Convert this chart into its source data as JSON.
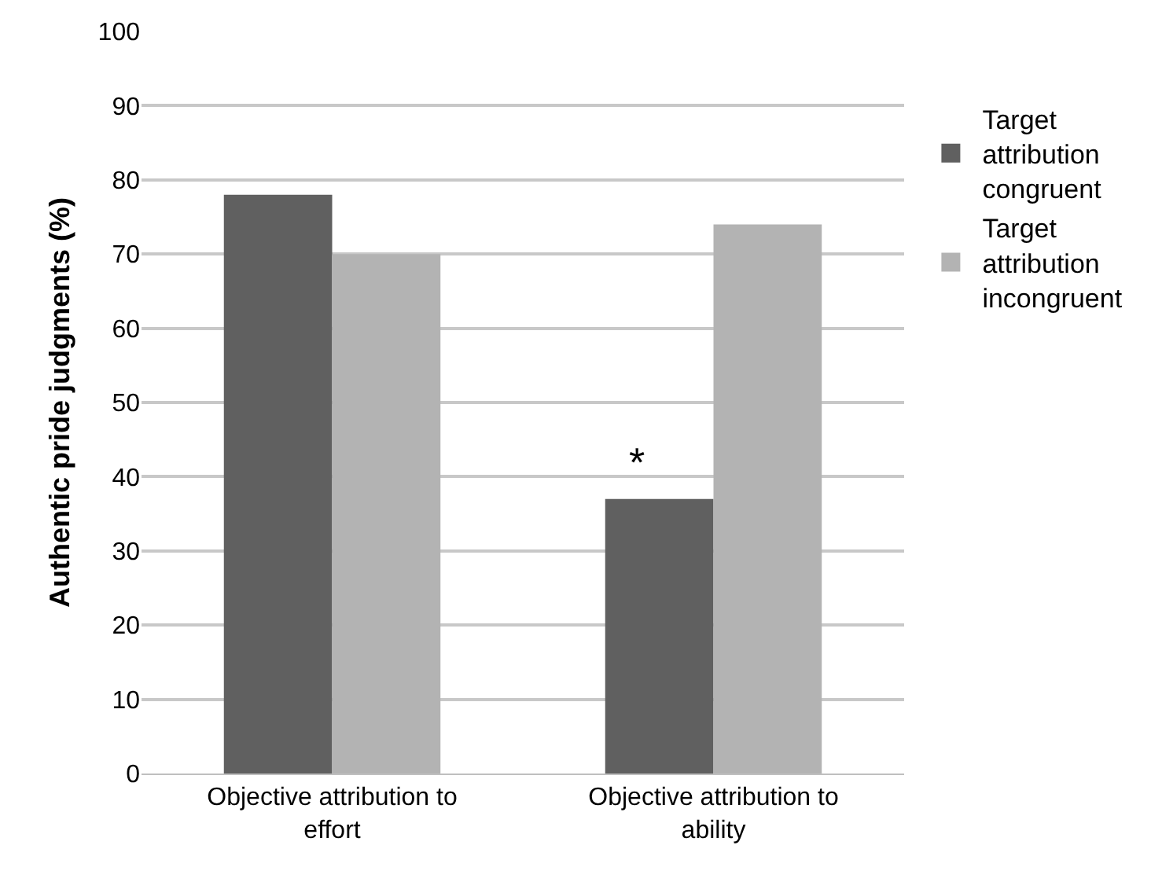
{
  "chart_data": {
    "type": "bar",
    "ylabel": "Authentic pride judgments (%)",
    "categories": [
      "Objective attribution to effort",
      "Objective attribution to ability"
    ],
    "series": [
      {
        "name": "Target attribution congruent",
        "color": "#606060",
        "values": [
          78,
          37
        ]
      },
      {
        "name": "Target attribution incongruent",
        "color": "#b3b3b3",
        "values": [
          70,
          74
        ]
      }
    ],
    "ylim": [
      0,
      100
    ],
    "yticks": [
      0,
      10,
      20,
      30,
      40,
      50,
      60,
      70,
      80,
      90,
      100
    ],
    "grid": "y",
    "legend": "right",
    "annotations": [
      {
        "text": "*",
        "x": "Objective attribution to ability",
        "y": 42
      }
    ]
  }
}
